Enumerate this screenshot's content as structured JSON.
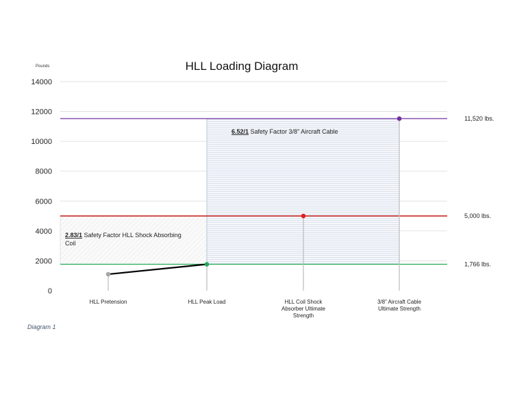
{
  "chart_data": {
    "type": "line",
    "title": "HLL Loading Diagram",
    "ylabel": "Pounds",
    "ylim": [
      0,
      14000
    ],
    "yticks": [
      0,
      2000,
      4000,
      6000,
      8000,
      10000,
      12000,
      14000
    ],
    "categories": [
      "HLL Pretension",
      "HLL Peak Load",
      "HLL Coil Shock Absorber Ultimate Strength",
      "3/8” Aircraft Cable Ultimate Strength"
    ],
    "category_label_lines": [
      [
        "HLL Pretension"
      ],
      [
        "HLL Peak Load"
      ],
      [
        "HLL Coil Shock",
        "Absorber Ultimate",
        "Strength"
      ],
      [
        "3/8” Aircraft Cable",
        "Ultimate Strength"
      ]
    ],
    "points": [
      {
        "category": "HLL Pretension",
        "value": 1100,
        "color": "#a6a6a6"
      },
      {
        "category": "HLL Peak Load",
        "value": 1766,
        "color": "#22aa55"
      },
      {
        "category": "HLL Coil Shock Absorber Ultimate Strength",
        "value": 5000,
        "color": "#e02020"
      },
      {
        "category": "3/8” Aircraft Cable Ultimate Strength",
        "value": 11520,
        "color": "#7030a0"
      }
    ],
    "reference_lines": [
      {
        "value": 11520,
        "label": "11,520 lbs.",
        "color": "#7030a0"
      },
      {
        "value": 5000,
        "label": "5,000 lbs.",
        "color": "#c00000"
      },
      {
        "value": 1766,
        "label": "1,766 lbs.",
        "color": "#22aa55"
      }
    ],
    "annotations": [
      {
        "ratio": "6.52/1",
        "text": " Safety Factor 3/8” Aircraft Cable"
      },
      {
        "ratio": "2.83/1",
        "text": " Safety Factor HLL Shock Absorbing",
        "text_line2": "Coil"
      }
    ],
    "grid": true
  },
  "caption": "Diagram 1",
  "colors": {
    "grid": "#d9d9d9",
    "pretension_line": "#000000",
    "drop_lines": "#bfbfbf",
    "box_stroke": "#a9bcd6"
  }
}
